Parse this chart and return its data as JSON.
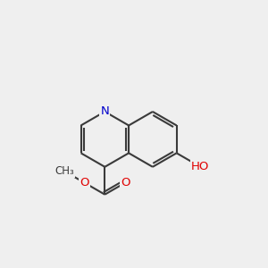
{
  "background_color": "#efefef",
  "bond_color": "#3a3a3a",
  "bond_width": 1.5,
  "atom_colors": {
    "O": "#e00000",
    "N": "#0000cc",
    "C": "#3a3a3a",
    "H": "#3a3a3a"
  },
  "font_size": 9.5
}
